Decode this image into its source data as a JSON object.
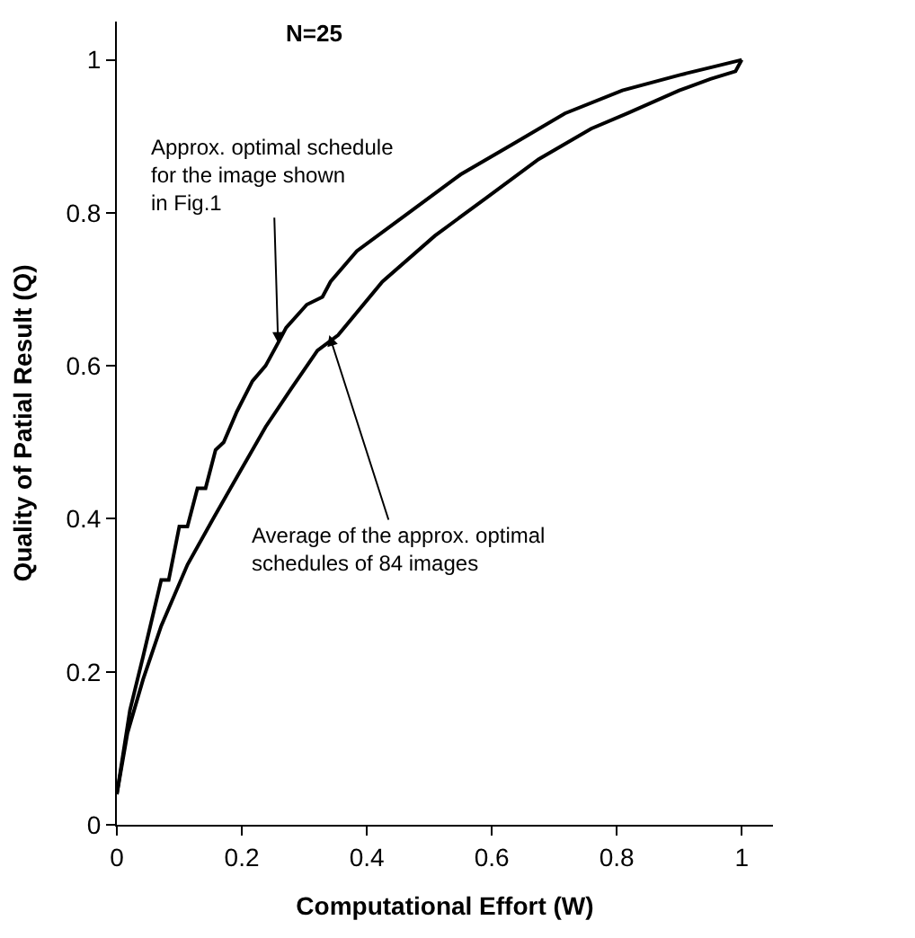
{
  "chart_data": {
    "type": "line",
    "xlabel": "Computational Effort (W)",
    "ylabel": "Quality of Patial Result (Q)",
    "xlim": [
      0,
      1.05
    ],
    "ylim": [
      0,
      1.05
    ],
    "xticks": [
      0,
      0.2,
      0.4,
      0.6,
      0.8,
      1
    ],
    "yticks": [
      0,
      0.2,
      0.4,
      0.6,
      0.8,
      1
    ],
    "marker": "none",
    "line_style": "solid",
    "series": [
      {
        "color": "#000000",
        "x": [
          0,
          0.021,
          0.042,
          0.071,
          0.083,
          0.1,
          0.113,
          0.129,
          0.142,
          0.158,
          0.171,
          0.192,
          0.217,
          0.238,
          0.258,
          0.271,
          0.304,
          0.329,
          0.342,
          0.384,
          0.467,
          0.55,
          0.634,
          0.717,
          0.809,
          0.9,
          0.95,
          1
        ],
        "values": [
          0.04,
          0.15,
          0.22,
          0.32,
          0.32,
          0.39,
          0.39,
          0.44,
          0.44,
          0.49,
          0.5,
          0.54,
          0.58,
          0.6,
          0.63,
          0.65,
          0.68,
          0.69,
          0.71,
          0.75,
          0.8,
          0.85,
          0.89,
          0.93,
          0.96,
          0.98,
          0.99,
          1
        ]
      },
      {
        "color": "#000000",
        "x": [
          0,
          0.017,
          0.042,
          0.071,
          0.113,
          0.154,
          0.196,
          0.238,
          0.279,
          0.321,
          0.354,
          0.425,
          0.509,
          0.592,
          0.675,
          0.759,
          0.817,
          0.9,
          0.95,
          0.99,
          1
        ],
        "values": [
          0.04,
          0.12,
          0.19,
          0.26,
          0.34,
          0.4,
          0.46,
          0.52,
          0.57,
          0.62,
          0.64,
          0.71,
          0.77,
          0.82,
          0.87,
          0.91,
          0.93,
          0.96,
          0.975,
          0.985,
          1
        ]
      }
    ],
    "annotations": [
      "N=25",
      {
        "text": "Approx. optimal schedule\nfor the image shown\nin Fig.1",
        "x": 0.258,
        "y": 0.63
      },
      {
        "text": "Average of the approx. optimal\nschedules of 84 images",
        "x": 0.34,
        "y": 0.64
      }
    ]
  }
}
